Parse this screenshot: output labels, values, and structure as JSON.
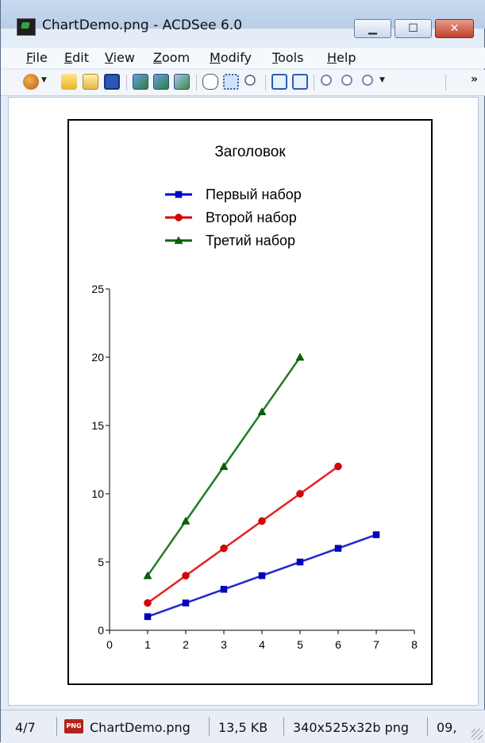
{
  "window": {
    "title": "ChartDemo.png - ACDSee 6.0",
    "buttons": {
      "minimize": "▁",
      "maximize": "☐",
      "close": "✕"
    }
  },
  "menu": {
    "items": [
      {
        "accel": "F",
        "rest": "ile"
      },
      {
        "accel": "E",
        "rest": "dit"
      },
      {
        "accel": "V",
        "rest": "iew"
      },
      {
        "accel": "Z",
        "rest": "oom"
      },
      {
        "accel": "M",
        "rest": "odify"
      },
      {
        "accel": "T",
        "rest": "ools"
      },
      {
        "accel": "H",
        "rest": "elp"
      }
    ]
  },
  "toolbar": {
    "icons": [
      "edit-icon",
      "open-folder-icon",
      "browse-icon",
      "save-icon",
      "prev-image-icon",
      "next-image-icon",
      "slideshow-icon",
      "hand-tool-icon",
      "select-tool-icon",
      "zoom-tool-icon",
      "rotate-left-icon",
      "rotate-right-icon",
      "zoom-out-icon",
      "zoom-in-icon",
      "zoom-menu-icon"
    ],
    "overflow": "»"
  },
  "chart_data": {
    "type": "line",
    "title": "Заголовок",
    "legend_position": "top-center",
    "x": [
      1,
      2,
      3,
      4,
      5,
      6,
      7
    ],
    "xlim": [
      0,
      8
    ],
    "ylim": [
      0,
      25
    ],
    "xticks": [
      0,
      1,
      2,
      3,
      4,
      5,
      6,
      7,
      8
    ],
    "yticks": [
      0,
      5,
      10,
      15,
      20,
      25
    ],
    "grid": false,
    "series": [
      {
        "name": "Первый набор",
        "color": "#0000cc",
        "marker": "square",
        "x": [
          1,
          2,
          3,
          4,
          5,
          6,
          7
        ],
        "values": [
          1,
          2,
          3,
          4,
          5,
          6,
          7
        ]
      },
      {
        "name": "Второй набор",
        "color": "#dd0000",
        "marker": "circle",
        "x": [
          1,
          2,
          3,
          4,
          5,
          6
        ],
        "values": [
          2,
          4,
          6,
          8,
          10,
          12
        ]
      },
      {
        "name": "Третий набор",
        "color": "#006600",
        "marker": "triangle",
        "x": [
          1,
          2,
          3,
          4,
          5
        ],
        "values": [
          4,
          8,
          12,
          16,
          20
        ]
      }
    ]
  },
  "status": {
    "position": "4/7",
    "filename": "ChartDemo.png",
    "filesize": "13,5 KB",
    "imageinfo": "340x525x32b png",
    "datetime": "09,",
    "png_badge": "PNG"
  }
}
